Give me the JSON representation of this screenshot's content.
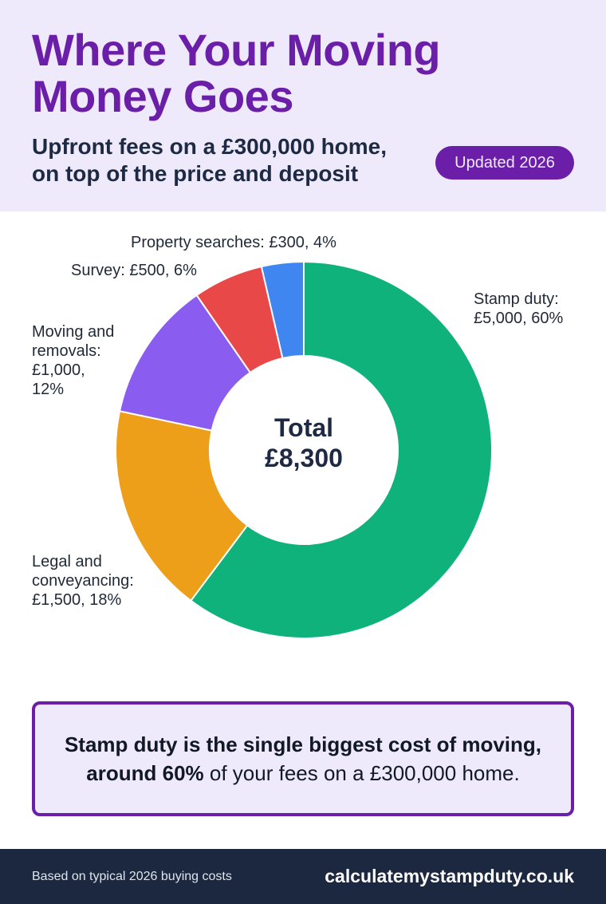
{
  "header": {
    "title_line1": "Where Your Moving",
    "title_line2": "Money Goes",
    "subtitle_line1": "Upfront fees on a £300,000 home,",
    "subtitle_line2": "on top of the price and deposit",
    "badge": "Updated 2026"
  },
  "colors": {
    "brand_purple": "#6b1fa8",
    "header_bg": "#efeafb",
    "footer_bg": "#1c2740"
  },
  "chart_data": {
    "type": "pie",
    "title": "",
    "center_label_line1": "Total",
    "center_label_line2": "£8,300",
    "slices": [
      {
        "name": "Stamp duty",
        "value": 5000,
        "percent": 60,
        "color": "#10b27c",
        "label_lines": [
          "Stamp duty:",
          "£5,000, 60%"
        ]
      },
      {
        "name": "Legal and conveyancing",
        "value": 1500,
        "percent": 18,
        "color": "#ee9f1a",
        "label_lines": [
          "Legal and",
          "conveyancing:",
          "£1,500, 18%"
        ]
      },
      {
        "name": "Moving and removals",
        "value": 1000,
        "percent": 12,
        "color": "#8b5cf0",
        "label_lines": [
          "Moving and",
          "removals:",
          "£1,000,",
          "12%"
        ]
      },
      {
        "name": "Survey",
        "value": 500,
        "percent": 6,
        "color": "#e94848",
        "label_lines": [
          "Survey: £500, 6%"
        ]
      },
      {
        "name": "Property searches",
        "value": 300,
        "percent": 4,
        "color": "#3f86f0",
        "label_lines": [
          "Property searches: £300, 4%"
        ]
      }
    ]
  },
  "callout": {
    "line1": "Stamp duty is the single biggest cost of moving,",
    "line2_bold": "around 60%",
    "line2_rest": " of your fees on a £300,000 home."
  },
  "footer": {
    "note": "Based on typical 2026 buying costs",
    "site": "calculatemystampduty.co.uk"
  }
}
